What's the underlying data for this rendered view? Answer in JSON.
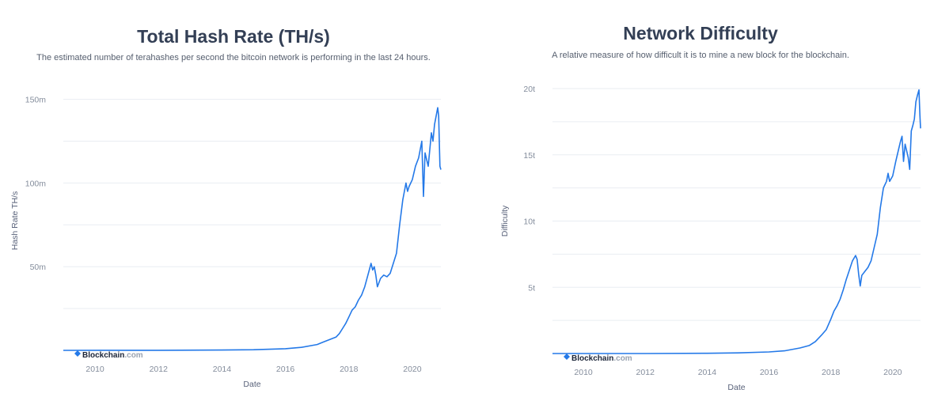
{
  "chart_data": [
    {
      "type": "line",
      "title": "Total Hash Rate (TH/s)",
      "subtitle": "The estimated number of terahashes per second the bitcoin network is performing in the last 24 hours.",
      "xlabel": "Date",
      "ylabel": "Hash Rate TH/s",
      "xlim": [
        2009.0,
        2020.9
      ],
      "ylim": [
        0,
        155000000
      ],
      "x_ticks": [
        2010,
        2012,
        2014,
        2016,
        2018,
        2020
      ],
      "x_tick_labels": [
        "2010",
        "2012",
        "2014",
        "2016",
        "2018",
        "2020"
      ],
      "y_ticks": [
        50000000,
        100000000,
        150000000
      ],
      "y_tick_labels": [
        "50m",
        "100m",
        "150m"
      ],
      "grid": true,
      "watermark": {
        "brand": "Blockchain",
        "suffix": ".com"
      },
      "series": [
        {
          "color": "#2479e8",
          "x": [
            2009.0,
            2012.0,
            2014.0,
            2015.0,
            2016.0,
            2016.5,
            2017.0,
            2017.2,
            2017.4,
            2017.6,
            2017.7,
            2017.8,
            2017.9,
            2018.0,
            2018.1,
            2018.2,
            2018.3,
            2018.4,
            2018.5,
            2018.6,
            2018.7,
            2018.75,
            2018.8,
            2018.85,
            2018.9,
            2019.0,
            2019.1,
            2019.2,
            2019.3,
            2019.4,
            2019.5,
            2019.6,
            2019.7,
            2019.8,
            2019.85,
            2019.9,
            2020.0,
            2020.1,
            2020.2,
            2020.3,
            2020.35,
            2020.4,
            2020.5,
            2020.6,
            2020.65,
            2020.7,
            2020.8,
            2020.83,
            2020.87,
            2020.9
          ],
          "y": [
            0,
            50000,
            200000,
            400000,
            1000000,
            1800000,
            3500000,
            5000000,
            6500000,
            8000000,
            10000000,
            13000000,
            16000000,
            20000000,
            24000000,
            26000000,
            30000000,
            33000000,
            38000000,
            45000000,
            52000000,
            48000000,
            50000000,
            45000000,
            38000000,
            43000000,
            45000000,
            44000000,
            46000000,
            52000000,
            58000000,
            75000000,
            90000000,
            100000000,
            95000000,
            98000000,
            102000000,
            110000000,
            115000000,
            125000000,
            92000000,
            118000000,
            110000000,
            130000000,
            125000000,
            135000000,
            145000000,
            140000000,
            110000000,
            108000000
          ]
        }
      ]
    },
    {
      "type": "line",
      "title": "Network Difficulty",
      "subtitle": "A relative measure of how difficult it is to mine a new block for the blockchain.",
      "xlabel": "Date",
      "ylabel": "Difficulty",
      "xlim": [
        2009.0,
        2020.9
      ],
      "ylim": [
        0,
        20000000000000
      ],
      "x_ticks": [
        2010,
        2012,
        2014,
        2016,
        2018,
        2020
      ],
      "x_tick_labels": [
        "2010",
        "2012",
        "2014",
        "2016",
        "2018",
        "2020"
      ],
      "y_ticks": [
        5000000000000,
        10000000000000,
        15000000000000,
        20000000000000
      ],
      "y_tick_labels": [
        "5t",
        "10t",
        "15t",
        "20t"
      ],
      "grid": true,
      "watermark": {
        "brand": "Blockchain",
        "suffix": ".com"
      },
      "series": [
        {
          "color": "#2479e8",
          "x": [
            2009.0,
            2012.0,
            2014.0,
            2015.0,
            2016.0,
            2016.5,
            2017.0,
            2017.3,
            2017.5,
            2017.7,
            2017.85,
            2018.0,
            2018.1,
            2018.2,
            2018.3,
            2018.4,
            2018.5,
            2018.6,
            2018.7,
            2018.8,
            2018.85,
            2018.9,
            2018.95,
            2019.0,
            2019.1,
            2019.2,
            2019.3,
            2019.4,
            2019.5,
            2019.6,
            2019.7,
            2019.8,
            2019.85,
            2019.9,
            2020.0,
            2020.1,
            2020.2,
            2020.25,
            2020.3,
            2020.35,
            2020.4,
            2020.5,
            2020.55,
            2020.6,
            2020.65,
            2020.7,
            2020.75,
            2020.8,
            2020.85,
            2020.88,
            2020.9
          ],
          "y": [
            0,
            2000000000,
            20000000000,
            50000000000,
            120000000000,
            200000000000,
            420000000000,
            600000000000,
            900000000000,
            1400000000000,
            1800000000000,
            2600000000000,
            3200000000000,
            3600000000000,
            4100000000000,
            4800000000000,
            5600000000000,
            6300000000000,
            7000000000000,
            7400000000000,
            7100000000000,
            6000000000000,
            5100000000000,
            5900000000000,
            6200000000000,
            6500000000000,
            7000000000000,
            8000000000000,
            9000000000000,
            11000000000000,
            12500000000000,
            13000000000000,
            13600000000000,
            13000000000000,
            13400000000000,
            14500000000000,
            15500000000000,
            16000000000000,
            16400000000000,
            14500000000000,
            15800000000000,
            14800000000000,
            13900000000000,
            16800000000000,
            17200000000000,
            17700000000000,
            19000000000000,
            19500000000000,
            19900000000000,
            18000000000000,
            17000000000000
          ]
        }
      ]
    }
  ]
}
